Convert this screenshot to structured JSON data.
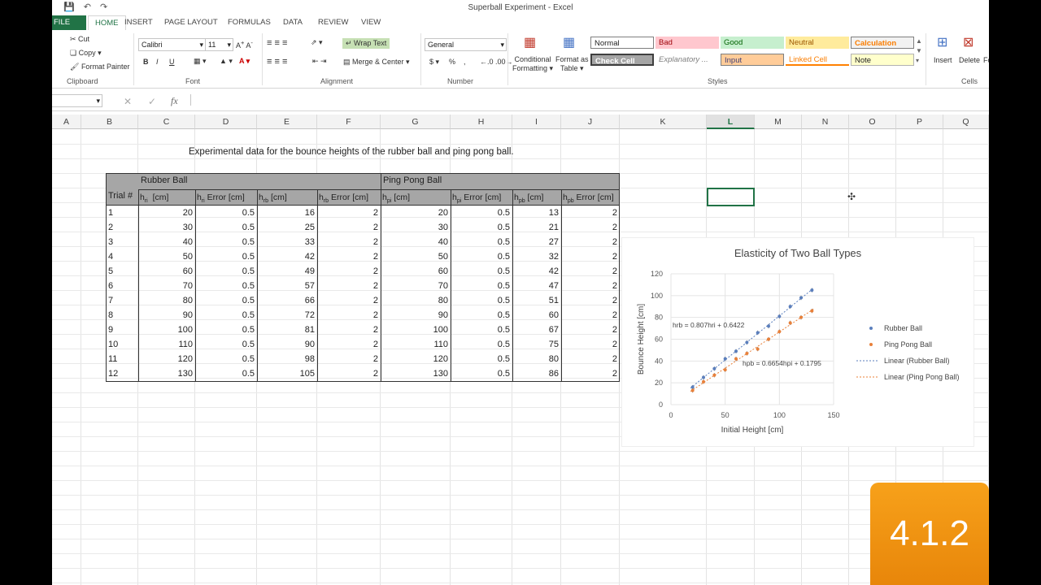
{
  "window": {
    "title": "Superball Experiment - Excel"
  },
  "tabs": [
    "FILE",
    "HOME",
    "INSERT",
    "PAGE LAYOUT",
    "FORMULAS",
    "DATA",
    "REVIEW",
    "VIEW"
  ],
  "ribbon": {
    "clipboard": {
      "cut": "Cut",
      "copy": "Copy",
      "format_painter": "Format Painter",
      "label": "Clipboard"
    },
    "font": {
      "name": "Calibri",
      "size": "11",
      "label": "Font",
      "bold": "B",
      "italic": "I",
      "underline": "U"
    },
    "alignment": {
      "wrap_text": "Wrap Text",
      "merge_center": "Merge & Center",
      "label": "Alignment"
    },
    "number": {
      "format": "General",
      "label": "Number",
      "currency": "$",
      "percent": "%",
      "comma": ","
    },
    "styles": {
      "conditional": "Conditional",
      "conditional2": "Formatting",
      "format_as": "Format as",
      "format_as2": "Table",
      "label": "Styles",
      "cells": [
        "Normal",
        "Bad",
        "Good",
        "Neutral",
        "Calculation",
        "Check Cell",
        "Explanatory ...",
        "Input",
        "Linked Cell",
        "Note"
      ],
      "colors": {
        "bad": "#ffc7ce",
        "good": "#c6efce",
        "neutral": "#ffeb9c",
        "calc": "#f2f2f2",
        "check": "#a5a5a5",
        "input": "#ffcc99",
        "note": "#ffffcc"
      }
    },
    "cells": {
      "insert": "Insert",
      "delete": "Delete",
      "format": "Fo",
      "label": "Cells"
    }
  },
  "formula_bar": {
    "fx": "fx"
  },
  "columns": [
    "A",
    "B",
    "C",
    "D",
    "E",
    "F",
    "G",
    "H",
    "I",
    "J",
    "K",
    "L",
    "M",
    "N",
    "O",
    "P",
    "Q"
  ],
  "sheet": {
    "title": "Experimental data for the bounce heights of the rubber ball and ping pong ball.",
    "group_rubber": "Rubber Ball",
    "group_pingpong": "Ping Pong Ball",
    "trial_header": "Trial #",
    "rows": [
      [
        "1",
        "20",
        "0.5",
        "16",
        "2",
        "20",
        "0.5",
        "13",
        "2"
      ],
      [
        "2",
        "30",
        "0.5",
        "25",
        "2",
        "30",
        "0.5",
        "21",
        "2"
      ],
      [
        "3",
        "40",
        "0.5",
        "33",
        "2",
        "40",
        "0.5",
        "27",
        "2"
      ],
      [
        "4",
        "50",
        "0.5",
        "42",
        "2",
        "50",
        "0.5",
        "32",
        "2"
      ],
      [
        "5",
        "60",
        "0.5",
        "49",
        "2",
        "60",
        "0.5",
        "42",
        "2"
      ],
      [
        "6",
        "70",
        "0.5",
        "57",
        "2",
        "70",
        "0.5",
        "47",
        "2"
      ],
      [
        "7",
        "80",
        "0.5",
        "66",
        "2",
        "80",
        "0.5",
        "51",
        "2"
      ],
      [
        "8",
        "90",
        "0.5",
        "72",
        "2",
        "90",
        "0.5",
        "60",
        "2"
      ],
      [
        "9",
        "100",
        "0.5",
        "81",
        "2",
        "100",
        "0.5",
        "67",
        "2"
      ],
      [
        "10",
        "110",
        "0.5",
        "90",
        "2",
        "110",
        "0.5",
        "75",
        "2"
      ],
      [
        "11",
        "120",
        "0.5",
        "98",
        "2",
        "120",
        "0.5",
        "80",
        "2"
      ],
      [
        "12",
        "130",
        "0.5",
        "105",
        "2",
        "130",
        "0.5",
        "86",
        "2"
      ]
    ]
  },
  "chart_data": {
    "type": "scatter",
    "title": "Elasticity of Two Ball Types",
    "xlabel": "Initial Height [cm]",
    "ylabel": "Bounce Height [cm]",
    "xlim": [
      0,
      150
    ],
    "ylim": [
      0,
      120
    ],
    "xticks": [
      "0",
      "50",
      "100",
      "150"
    ],
    "yticks": [
      "0",
      "20",
      "40",
      "60",
      "80",
      "100",
      "120"
    ],
    "grid": true,
    "legend": "right",
    "series": [
      {
        "name": "Rubber Ball",
        "color": "#5b7fbd",
        "x": [
          20,
          30,
          40,
          50,
          60,
          70,
          80,
          90,
          100,
          110,
          120,
          130
        ],
        "y": [
          16,
          25,
          33,
          42,
          49,
          57,
          66,
          72,
          81,
          90,
          98,
          105
        ]
      },
      {
        "name": "Ping Pong Ball",
        "color": "#e8803a",
        "x": [
          20,
          30,
          40,
          50,
          60,
          70,
          80,
          90,
          100,
          110,
          120,
          130
        ],
        "y": [
          13,
          21,
          27,
          32,
          42,
          47,
          51,
          60,
          67,
          75,
          80,
          86
        ]
      }
    ],
    "trendlines": [
      {
        "name": "Linear (Rubber Ball)",
        "slope": 0.807,
        "intercept": 0.6422,
        "color": "#5b7fbd"
      },
      {
        "name": "Linear (Ping Pong Ball)",
        "slope": 0.6654,
        "intercept": 0.1795,
        "color": "#e8803a"
      }
    ],
    "annotations": [
      "= 0.807h",
      "+ 0.6422",
      "= 0.6654h",
      "+ 0.1795"
    ]
  },
  "badge": {
    "text": "4.1.2"
  }
}
